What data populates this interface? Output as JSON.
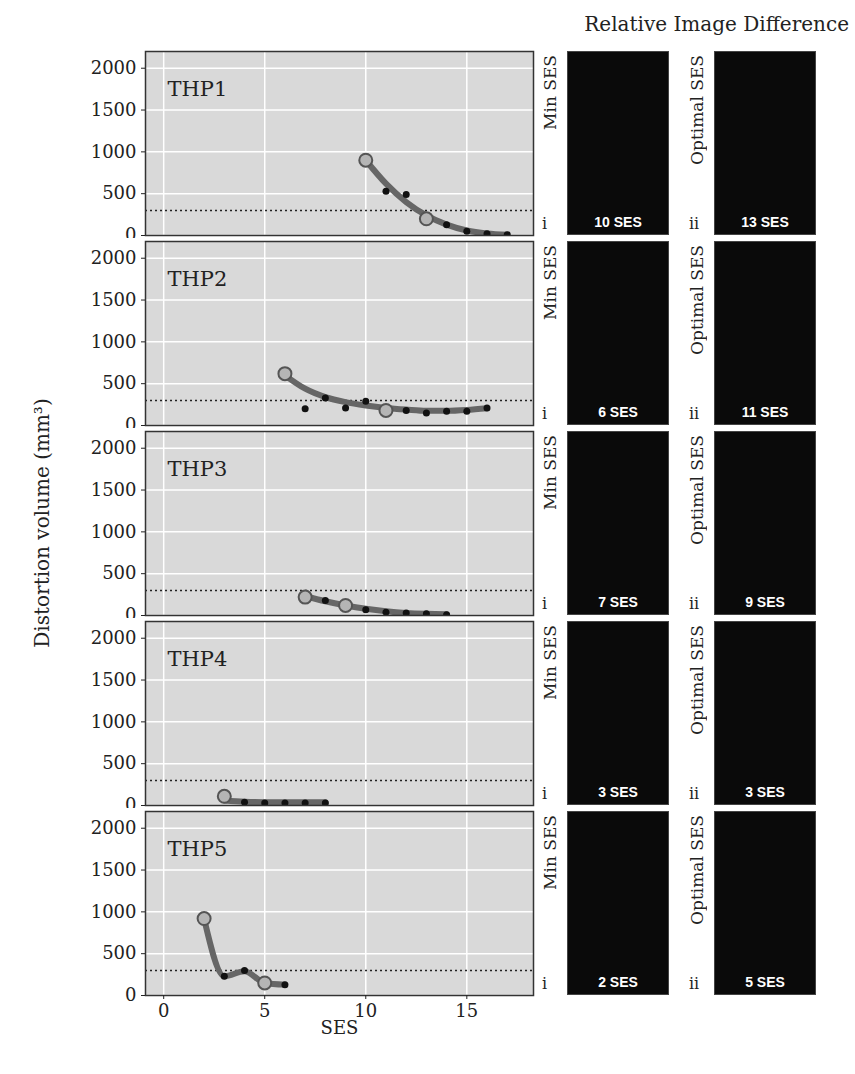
{
  "image_title": "Relative Image Difference",
  "ylabel": "Distortion volume (mm³)",
  "chart_data": [
    {
      "type": "line",
      "title": "THP1",
      "color": "#666666",
      "grid": true,
      "tick_labels": "y",
      "xlim": [
        -0.9,
        18.3
      ],
      "xticks": [
        0,
        5,
        10,
        15
      ],
      "ylim": [
        0,
        2200
      ],
      "yticks": [
        0,
        500,
        1000,
        1500,
        2000
      ],
      "x": [
        10,
        11,
        12,
        13,
        14,
        15,
        16,
        17
      ],
      "values": [
        900,
        530,
        490,
        200,
        130,
        50,
        20,
        10
      ],
      "fit": [
        900,
        620,
        400,
        240,
        130,
        60,
        25,
        10
      ],
      "threshold": 300,
      "min_ses": 10,
      "optimal_ses": 13,
      "images": [
        {
          "caption": "Min SES",
          "numeral": "i",
          "label": "10 SES"
        },
        {
          "caption": "Optimal SES",
          "numeral": "ii",
          "label": "13 SES"
        }
      ]
    },
    {
      "type": "line",
      "title": "THP2",
      "color": "#666666",
      "grid": true,
      "tick_labels": "y",
      "xlim": [
        -0.9,
        18.3
      ],
      "xticks": [
        0,
        5,
        10,
        15
      ],
      "ylim": [
        0,
        2200
      ],
      "yticks": [
        0,
        500,
        1000,
        1500,
        2000
      ],
      "x": [
        6,
        7,
        8,
        9,
        10,
        11,
        12,
        13,
        14,
        15,
        16
      ],
      "values": [
        620,
        200,
        330,
        210,
        290,
        180,
        180,
        150,
        170,
        170,
        210
      ],
      "fit": [
        600,
        440,
        340,
        280,
        240,
        210,
        190,
        175,
        175,
        185,
        205
      ],
      "threshold": 300,
      "min_ses": 6,
      "optimal_ses": 11,
      "images": [
        {
          "caption": "Min SES",
          "numeral": "i",
          "label": "6 SES"
        },
        {
          "caption": "Optimal SES",
          "numeral": "ii",
          "label": "11 SES"
        }
      ]
    },
    {
      "type": "line",
      "title": "THP3",
      "color": "#666666",
      "grid": true,
      "tick_labels": "y",
      "xlim": [
        -0.9,
        18.3
      ],
      "xticks": [
        0,
        5,
        10,
        15
      ],
      "ylim": [
        0,
        2200
      ],
      "yticks": [
        0,
        500,
        1000,
        1500,
        2000
      ],
      "x": [
        7,
        8,
        9,
        10,
        11,
        12,
        13,
        14
      ],
      "values": [
        220,
        180,
        120,
        70,
        40,
        30,
        20,
        10
      ],
      "fit": [
        230,
        170,
        120,
        80,
        50,
        30,
        20,
        15
      ],
      "threshold": 300,
      "min_ses": 7,
      "optimal_ses": 9,
      "images": [
        {
          "caption": "Min SES",
          "numeral": "i",
          "label": "7 SES"
        },
        {
          "caption": "Optimal SES",
          "numeral": "ii",
          "label": "9 SES"
        }
      ]
    },
    {
      "type": "line",
      "title": "THP4",
      "color": "#666666",
      "grid": true,
      "tick_labels": "y",
      "xlim": [
        -0.9,
        18.3
      ],
      "xticks": [
        0,
        5,
        10,
        15
      ],
      "ylim": [
        0,
        2200
      ],
      "yticks": [
        0,
        500,
        1000,
        1500,
        2000
      ],
      "x": [
        3,
        4,
        5,
        6,
        7,
        8
      ],
      "values": [
        110,
        40,
        30,
        30,
        30,
        30
      ],
      "fit": [
        60,
        45,
        40,
        40,
        40,
        40
      ],
      "threshold": 300,
      "min_ses": 3,
      "optimal_ses": 3,
      "images": [
        {
          "caption": "Min SES",
          "numeral": "i",
          "label": "3 SES"
        },
        {
          "caption": "Optimal SES",
          "numeral": "ii",
          "label": "3 SES"
        }
      ]
    },
    {
      "type": "line",
      "title": "THP5",
      "color": "#666666",
      "grid": true,
      "xlabel": "SES",
      "xlim": [
        -0.9,
        18.3
      ],
      "xticks": [
        0,
        5,
        10,
        15
      ],
      "ylim": [
        0,
        2200
      ],
      "yticks": [
        0,
        500,
        1000,
        1500,
        2000
      ],
      "x": [
        2,
        3,
        4,
        5,
        6
      ],
      "values": [
        920,
        230,
        300,
        150,
        130
      ],
      "fit": [
        920,
        230,
        290,
        150,
        130
      ],
      "threshold": 300,
      "min_ses": 2,
      "optimal_ses": 5,
      "images": [
        {
          "caption": "Min SES",
          "numeral": "i",
          "label": "2 SES"
        },
        {
          "caption": "Optimal SES",
          "numeral": "ii",
          "label": "5 SES"
        }
      ]
    }
  ]
}
